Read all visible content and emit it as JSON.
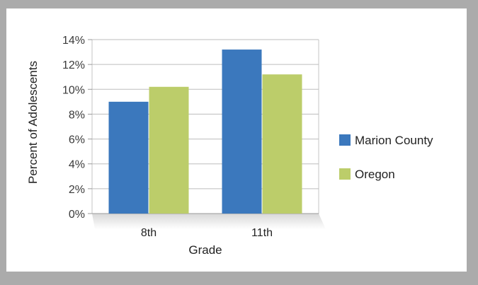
{
  "chart_data": {
    "type": "bar",
    "title": "",
    "xlabel": "Grade",
    "ylabel": "Percent of Adolescents",
    "categories": [
      "8th",
      "11th"
    ],
    "series": [
      {
        "name": "Marion County",
        "values": [
          9.0,
          13.2
        ],
        "color": "#3b78bd"
      },
      {
        "name": "Oregon",
        "values": [
          10.2,
          11.2
        ],
        "color": "#bccd6a"
      }
    ],
    "ylim": [
      0,
      14
    ],
    "yticks": [
      "0%",
      "2%",
      "4%",
      "6%",
      "8%",
      "10%",
      "12%",
      "14%"
    ],
    "grid": true,
    "legend": "right"
  }
}
